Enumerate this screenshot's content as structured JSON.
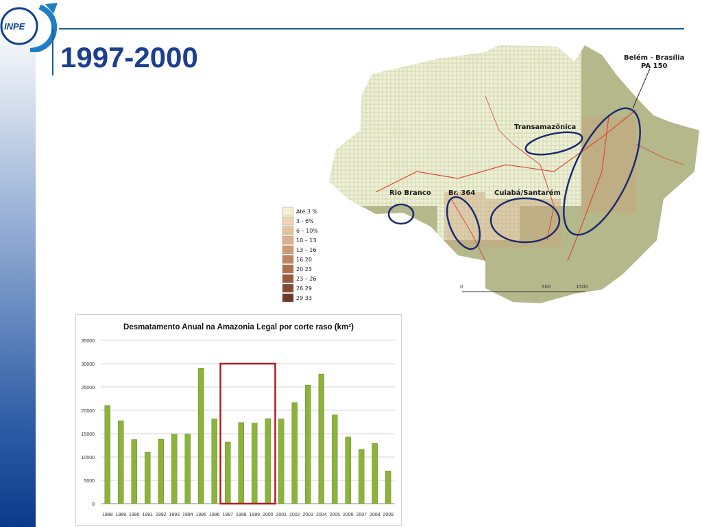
{
  "slide": {
    "title": "1997-2000",
    "logo_text": "INPE"
  },
  "map": {
    "labels": {
      "belem": "Belém - Brasília",
      "pa150": "PA 150",
      "transamazonica": "Transamazônica",
      "rio_branco": "Rio Branco",
      "br364": "Br. 364",
      "cuiaba": "Cuiabá/Santarém"
    },
    "legend": [
      "Até 3 %",
      "3 - 6%",
      "6 – 10%",
      "10 – 13",
      "13 – 16",
      "16 20",
      "20 23",
      "23 – 26",
      "26 29",
      "29 33"
    ],
    "legend_colors": [
      "#f3efcf",
      "#efd6ae",
      "#e6c39a",
      "#dcb088",
      "#cf9a72",
      "#bf8560",
      "#ad6f4e",
      "#9a5a3e",
      "#864932",
      "#6e3826"
    ],
    "scale": [
      "0",
      "500",
      "1500"
    ],
    "colors": {
      "land": "#c9cda4",
      "outside": "#a4a87c",
      "grid": "#eef0d8",
      "roads": "#d94a36",
      "ellipses": "#1b2a6e"
    }
  },
  "chart_data": {
    "type": "bar",
    "title": "Desmatamento Anual na Amazonia Legal por corte raso (km²)",
    "categories": [
      "1988",
      "1989",
      "1990",
      "1991",
      "1992",
      "1993",
      "1994",
      "1995",
      "1996",
      "1997",
      "1998",
      "1999",
      "2000",
      "2001",
      "2002",
      "2003",
      "2004",
      "2005",
      "2006",
      "2007",
      "2008",
      "2009"
    ],
    "values": [
      21050,
      17770,
      13730,
      11030,
      13786,
      14896,
      14896,
      29059,
      18161,
      13227,
      17383,
      17259,
      18226,
      18165,
      21651,
      25396,
      27772,
      19014,
      14286,
      11651,
      12911,
      7008
    ],
    "ylim": [
      0,
      35000
    ],
    "yticks": [
      0,
      5000,
      10000,
      15000,
      20000,
      25000,
      30000,
      35000
    ],
    "grid": true,
    "highlight": {
      "from": "1997",
      "to": "2000",
      "color": "#b51c1c"
    },
    "bar_color": "#8cb43c"
  }
}
